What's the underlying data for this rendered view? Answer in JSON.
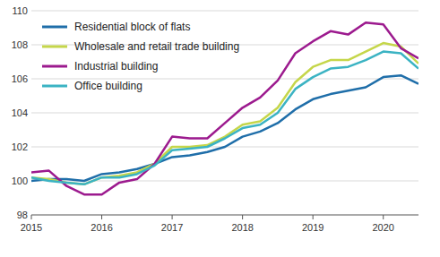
{
  "chart_data": {
    "type": "line",
    "x": [
      2015,
      2015.25,
      2015.5,
      2015.75,
      2016,
      2016.25,
      2016.5,
      2016.75,
      2017,
      2017.25,
      2017.5,
      2017.75,
      2018,
      2018.25,
      2018.5,
      2018.75,
      2019,
      2019.25,
      2019.5,
      2019.75,
      2020,
      2020.25,
      2020.5
    ],
    "xlim": [
      2015,
      2020.5
    ],
    "xticks": [
      2015,
      2016,
      2017,
      2018,
      2019,
      2020
    ],
    "ylim": [
      98,
      110
    ],
    "yticks": [
      98,
      100,
      102,
      104,
      106,
      108,
      110
    ],
    "grid": true,
    "legend": "top-left",
    "series": [
      {
        "name": "Residential block of flats",
        "color": "#1f6ea9",
        "values": [
          100.0,
          100.1,
          100.1,
          100.0,
          100.4,
          100.5,
          100.7,
          101.0,
          101.4,
          101.5,
          101.7,
          102.0,
          102.6,
          102.9,
          103.4,
          104.2,
          104.8,
          105.1,
          105.3,
          105.5,
          106.1,
          106.2,
          105.7
        ]
      },
      {
        "name": "Wholesale and retail trade building",
        "color": "#c5d64a",
        "values": [
          100.2,
          100.1,
          99.9,
          99.8,
          100.2,
          100.3,
          100.5,
          101.0,
          102.0,
          102.0,
          102.1,
          102.6,
          103.3,
          103.5,
          104.3,
          105.8,
          106.7,
          107.1,
          107.1,
          107.6,
          108.1,
          107.9,
          106.9
        ]
      },
      {
        "name": "Industrial building",
        "color": "#9c1a8e",
        "values": [
          100.5,
          100.6,
          99.7,
          99.2,
          99.2,
          99.9,
          100.1,
          101.0,
          102.6,
          102.5,
          102.5,
          103.4,
          104.3,
          104.9,
          105.9,
          107.5,
          108.2,
          108.8,
          108.6,
          109.3,
          109.2,
          107.8,
          107.2
        ]
      },
      {
        "name": "Office building",
        "color": "#3bb3c3",
        "values": [
          100.2,
          100.0,
          99.9,
          99.8,
          100.2,
          100.2,
          100.4,
          100.9,
          101.8,
          101.9,
          102.0,
          102.5,
          103.1,
          103.3,
          104.0,
          105.4,
          106.1,
          106.6,
          106.7,
          107.1,
          107.6,
          107.5,
          106.6
        ]
      }
    ]
  }
}
